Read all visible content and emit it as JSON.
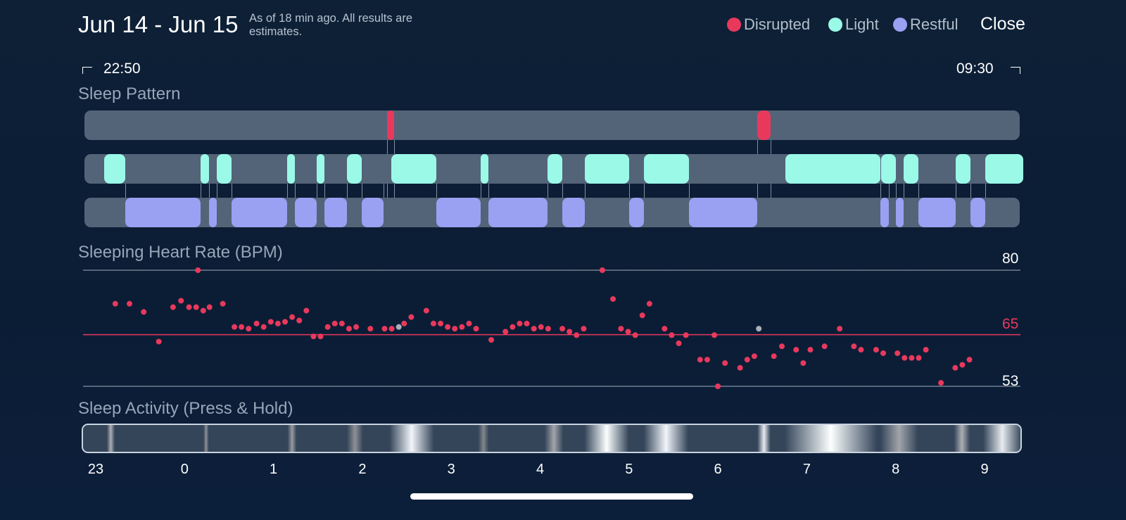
{
  "header": {
    "title": "Jun 14 - Jun 15",
    "subtitle": "As of 18 min ago. All results are estimates.",
    "close_label": "Close"
  },
  "legend": [
    {
      "label": "Disrupted",
      "color": "#e8395d"
    },
    {
      "label": "Light",
      "color": "#9bf9e8"
    },
    {
      "label": "Restful",
      "color": "#9aa0f2"
    }
  ],
  "time_range": {
    "start": "22:50",
    "end": "09:30"
  },
  "sleep_pattern": {
    "title": "Sleep Pattern",
    "colors": {
      "disrupted": "#e8395d",
      "light": "#9bf9e8",
      "restful": "#9aa0f2",
      "track": "#536478"
    },
    "disrupted": [
      [
        2.279,
        2.359
      ],
      [
        6.442,
        6.592
      ]
    ],
    "light": [
      [
        -0.903,
        -0.664
      ],
      [
        0.183,
        0.271
      ],
      [
        0.359,
        0.526
      ],
      [
        1.155,
        1.243
      ],
      [
        1.489,
        1.577
      ],
      [
        1.824,
        1.992
      ],
      [
        2.327,
        2.829
      ],
      [
        3.331,
        3.419
      ],
      [
        4.083,
        4.251
      ],
      [
        4.502,
        5.004
      ],
      [
        5.171,
        5.673
      ],
      [
        6.758,
        7.83
      ],
      [
        7.838,
        8.006
      ],
      [
        8.09,
        8.257
      ],
      [
        8.675,
        8.843
      ],
      [
        9.011,
        9.432
      ]
    ],
    "restful": [
      [
        -0.664,
        0.183
      ],
      [
        0.271,
        0.359
      ],
      [
        0.526,
        1.155
      ],
      [
        1.243,
        1.489
      ],
      [
        1.577,
        1.824
      ],
      [
        1.992,
        2.237
      ],
      [
        2.829,
        3.331
      ],
      [
        3.419,
        4.083
      ],
      [
        4.251,
        4.502
      ],
      [
        5.004,
        5.171
      ],
      [
        5.673,
        6.442
      ],
      [
        7.83,
        7.922
      ],
      [
        8.006,
        8.09
      ],
      [
        8.257,
        8.675
      ],
      [
        8.843,
        9.011
      ]
    ]
  },
  "heart_rate": {
    "title": "Sleeping Heart Rate (BPM)",
    "max_label": "80",
    "avg_label": "65",
    "min_label": "53",
    "avg_color": "#e8395d",
    "point_color": "#e8395d",
    "gap_color": "#a9b0b8"
  },
  "activity": {
    "title": "Sleep Activity (Press & Hold)"
  },
  "chart_data": {
    "type": "scatter",
    "title": "Sleeping Heart Rate (BPM)",
    "xlabel": "",
    "ylabel": "",
    "x_ticks": [
      "23",
      "0",
      "1",
      "2",
      "3",
      "4",
      "5",
      "6",
      "7",
      "8",
      "9"
    ],
    "xlim": [
      -0.9,
      9.45
    ],
    "ylim": [
      50,
      85
    ],
    "reference_lines": [
      {
        "label": "80",
        "y": 80
      },
      {
        "label": "65",
        "y": 65
      },
      {
        "label": "53",
        "y": 53
      }
    ],
    "series": [
      {
        "points": [
          [
            -0.78,
            72.2
          ],
          [
            -0.62,
            72.2
          ],
          [
            -0.46,
            70.3
          ],
          [
            -0.29,
            63.4
          ],
          [
            -0.13,
            71.4
          ],
          [
            -0.04,
            72.9
          ],
          [
            0.05,
            71.4
          ],
          [
            0.13,
            71.4
          ],
          [
            0.21,
            70.6
          ],
          [
            0.28,
            71.4
          ],
          [
            0.15,
            80
          ],
          [
            0.43,
            72.2
          ],
          [
            0.56,
            66.8
          ],
          [
            0.64,
            66.8
          ],
          [
            0.72,
            66.4
          ],
          [
            0.81,
            67.6
          ],
          [
            0.89,
            66.8
          ],
          [
            0.97,
            68
          ],
          [
            1.05,
            67.6
          ],
          [
            1.13,
            68
          ],
          [
            1.21,
            69.1
          ],
          [
            1.29,
            68.3
          ],
          [
            1.37,
            70.6
          ],
          [
            1.45,
            64.6
          ],
          [
            1.53,
            64.6
          ],
          [
            1.61,
            66.8
          ],
          [
            1.69,
            67.6
          ],
          [
            1.77,
            67.6
          ],
          [
            1.85,
            66.4
          ],
          [
            1.93,
            66.8
          ],
          [
            2.09,
            66.4
          ],
          [
            2.25,
            66.4
          ],
          [
            2.33,
            66.4
          ],
          [
            2.47,
            67.6
          ],
          [
            2.55,
            69.1
          ],
          [
            2.72,
            70.6
          ],
          [
            2.8,
            67.6
          ],
          [
            2.88,
            67.6
          ],
          [
            2.96,
            66.8
          ],
          [
            3.04,
            66.4
          ],
          [
            3.12,
            66.8
          ],
          [
            3.2,
            67.6
          ],
          [
            3.28,
            66.4
          ],
          [
            3.45,
            63.8
          ],
          [
            3.61,
            65.7
          ],
          [
            3.69,
            66.8
          ],
          [
            3.77,
            67.6
          ],
          [
            3.85,
            67.6
          ],
          [
            3.93,
            66.4
          ],
          [
            4.01,
            66.8
          ],
          [
            4.09,
            66.4
          ],
          [
            4.25,
            66.4
          ],
          [
            4.33,
            65.7
          ],
          [
            4.41,
            64.9
          ],
          [
            4.49,
            66.4
          ],
          [
            4.7,
            80
          ],
          [
            4.82,
            73.3
          ],
          [
            4.91,
            66.4
          ],
          [
            4.99,
            65.7
          ],
          [
            5.07,
            64.9
          ],
          [
            5.15,
            69.5
          ],
          [
            5.23,
            72.2
          ],
          [
            5.4,
            66.4
          ],
          [
            5.48,
            64.9
          ],
          [
            5.56,
            63
          ],
          [
            5.64,
            64.9
          ],
          [
            5.8,
            59.2
          ],
          [
            5.88,
            59.2
          ],
          [
            5.96,
            64.9
          ],
          [
            6.0,
            53
          ],
          [
            6.08,
            58.4
          ],
          [
            6.25,
            57.3
          ],
          [
            6.33,
            59.2
          ],
          [
            6.41,
            60
          ],
          [
            6.63,
            60
          ],
          [
            6.72,
            62.3
          ],
          [
            6.88,
            61.5
          ],
          [
            6.96,
            58.4
          ],
          [
            7.04,
            61.5
          ],
          [
            7.2,
            62.3
          ],
          [
            7.37,
            66.4
          ],
          [
            7.53,
            62.3
          ],
          [
            7.61,
            61.5
          ],
          [
            7.78,
            61.5
          ],
          [
            7.86,
            60.7
          ],
          [
            8.02,
            60.7
          ],
          [
            8.1,
            59.6
          ],
          [
            8.18,
            59.6
          ],
          [
            8.26,
            59.6
          ],
          [
            8.34,
            61.5
          ],
          [
            8.51,
            53.8
          ],
          [
            8.67,
            57.3
          ],
          [
            8.75,
            58
          ],
          [
            8.83,
            59.2
          ]
        ]
      }
    ],
    "missing_points": [
      [
        2.41,
        66.8
      ],
      [
        6.46,
        66.4
      ]
    ]
  }
}
